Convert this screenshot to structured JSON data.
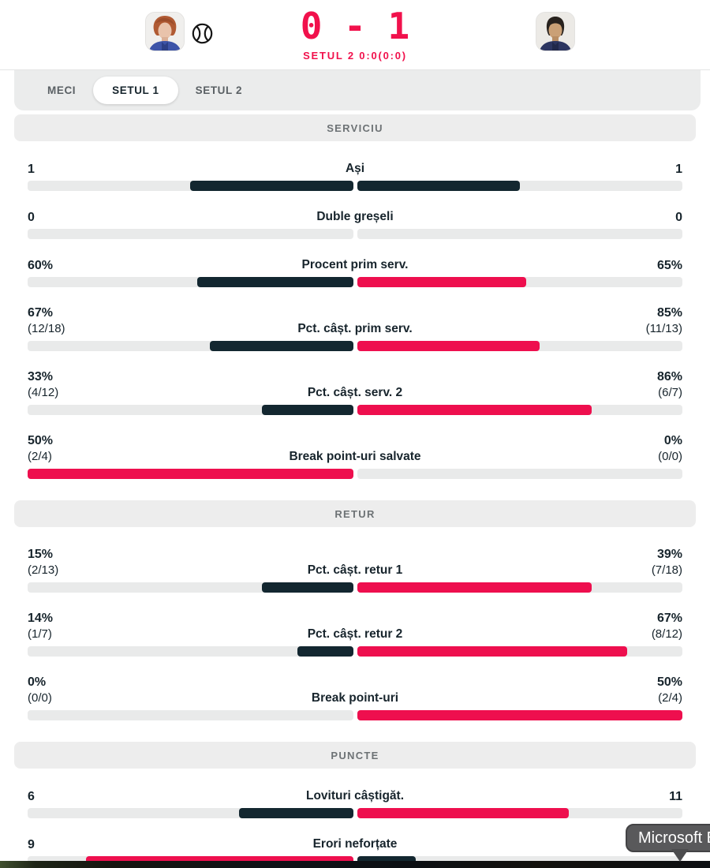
{
  "header": {
    "score": "0 - 1",
    "set_status": "SETUL 2 0:0(0:0)",
    "icons": {
      "serving": "tennis-ball-icon",
      "left_player": "player-left-avatar",
      "right_player": "player-right-avatar"
    }
  },
  "colors": {
    "accent_red": "#ee0f4e",
    "dark_navy": "#132730",
    "track_gray": "#e9eaea",
    "section_gray": "#ededed"
  },
  "tabs": [
    {
      "label": "MECI",
      "active": false
    },
    {
      "label": "SETUL 1",
      "active": true
    },
    {
      "label": "SETUL 2",
      "active": false
    }
  ],
  "sections": [
    {
      "title": "SERVICIU",
      "rows": [
        {
          "label": "Ași",
          "left": {
            "value": "1",
            "detail": "",
            "bar": 50
          },
          "right": {
            "value": "1",
            "detail": "",
            "bar": 50
          },
          "highlight": "none"
        },
        {
          "label": "Duble greșeli",
          "left": {
            "value": "0",
            "detail": "",
            "bar": 0
          },
          "right": {
            "value": "0",
            "detail": "",
            "bar": 0
          },
          "highlight": "none"
        },
        {
          "label": "Procent prim serv.",
          "left": {
            "value": "60%",
            "detail": "",
            "bar": 48
          },
          "right": {
            "value": "65%",
            "detail": "",
            "bar": 52
          },
          "highlight": "right"
        },
        {
          "label": "Pct. câșt. prim serv.",
          "left": {
            "value": "67%",
            "detail": "(12/18)",
            "bar": 44
          },
          "right": {
            "value": "85%",
            "detail": "(11/13)",
            "bar": 56
          },
          "highlight": "right"
        },
        {
          "label": "Pct. câșt. serv. 2",
          "left": {
            "value": "33%",
            "detail": "(4/12)",
            "bar": 28
          },
          "right": {
            "value": "86%",
            "detail": "(6/7)",
            "bar": 72
          },
          "highlight": "right"
        },
        {
          "label": "Break point-uri salvate",
          "left": {
            "value": "50%",
            "detail": "(2/4)",
            "bar": 100
          },
          "right": {
            "value": "0%",
            "detail": "(0/0)",
            "bar": 0
          },
          "highlight": "left"
        }
      ]
    },
    {
      "title": "RETUR",
      "rows": [
        {
          "label": "Pct. câșt. retur 1",
          "left": {
            "value": "15%",
            "detail": "(2/13)",
            "bar": 28
          },
          "right": {
            "value": "39%",
            "detail": "(7/18)",
            "bar": 72
          },
          "highlight": "right"
        },
        {
          "label": "Pct. câșt. retur 2",
          "left": {
            "value": "14%",
            "detail": "(1/7)",
            "bar": 17
          },
          "right": {
            "value": "67%",
            "detail": "(8/12)",
            "bar": 83
          },
          "highlight": "right"
        },
        {
          "label": "Break point-uri",
          "left": {
            "value": "0%",
            "detail": "(0/0)",
            "bar": 0
          },
          "right": {
            "value": "50%",
            "detail": "(2/4)",
            "bar": 100
          },
          "highlight": "right"
        }
      ]
    },
    {
      "title": "PUNCTE",
      "rows": [
        {
          "label": "Lovituri câștigăt.",
          "left": {
            "value": "6",
            "detail": "",
            "bar": 35
          },
          "right": {
            "value": "11",
            "detail": "",
            "bar": 65
          },
          "highlight": "right"
        },
        {
          "label": "Erori neforțate",
          "left": {
            "value": "9",
            "detail": "",
            "bar": 82
          },
          "right": {
            "value": "",
            "detail": "",
            "bar": 18
          },
          "highlight": "left"
        }
      ]
    }
  ],
  "tooltip": {
    "text": "Microsoft E"
  }
}
